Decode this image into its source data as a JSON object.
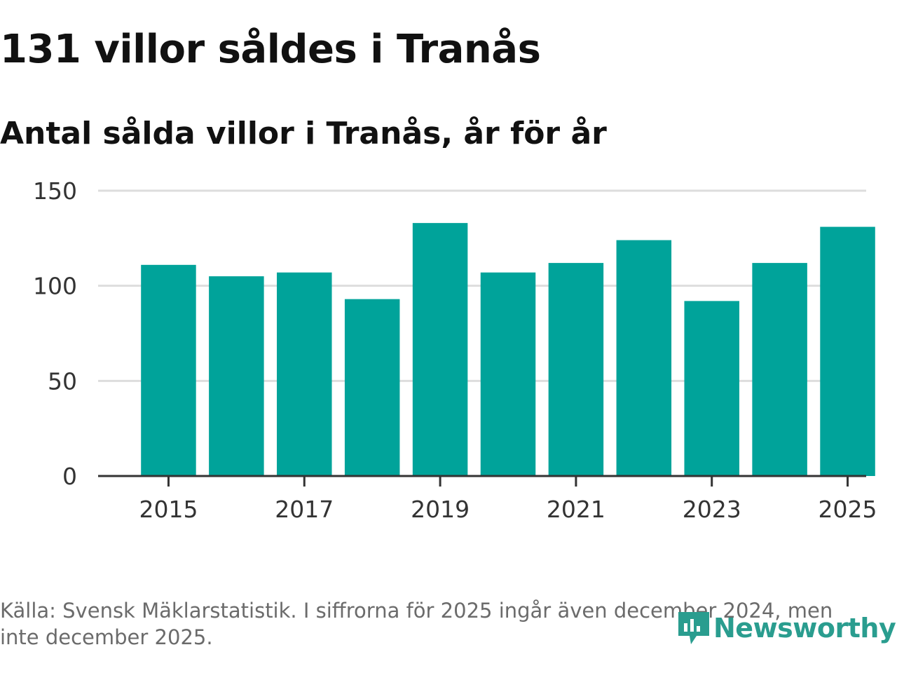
{
  "header": {
    "title": "131 villor såldes i Tranås",
    "subtitle": "Antal sålda villor i Tranås, år för år"
  },
  "footer": {
    "source": "Källa: Svensk Mäklarstatistik. I siffrorna för 2025 ingår även december 2024, men inte december 2025.",
    "logo_text": "Newsworthy"
  },
  "colors": {
    "bar": "#00a39a",
    "grid": "#dddddd",
    "axis": "#333333",
    "text": "#333333",
    "logo": "#2a9d8f"
  },
  "chart_data": {
    "type": "bar",
    "title": "131 villor såldes i Tranås",
    "subtitle": "Antal sålda villor i Tranås, år för år",
    "categories": [
      "2015",
      "2016",
      "2017",
      "2018",
      "2019",
      "2020",
      "2021",
      "2022",
      "2023",
      "2024",
      "2025"
    ],
    "values": [
      111,
      105,
      107,
      93,
      133,
      107,
      112,
      124,
      92,
      112,
      131
    ],
    "x_tick_labels": [
      "2015",
      "2017",
      "2019",
      "2021",
      "2023",
      "2025"
    ],
    "y_ticks": [
      0,
      50,
      100,
      150
    ],
    "ylim": [
      0,
      150
    ],
    "xlabel": "",
    "ylabel": "",
    "grid": true,
    "legend": "none"
  }
}
